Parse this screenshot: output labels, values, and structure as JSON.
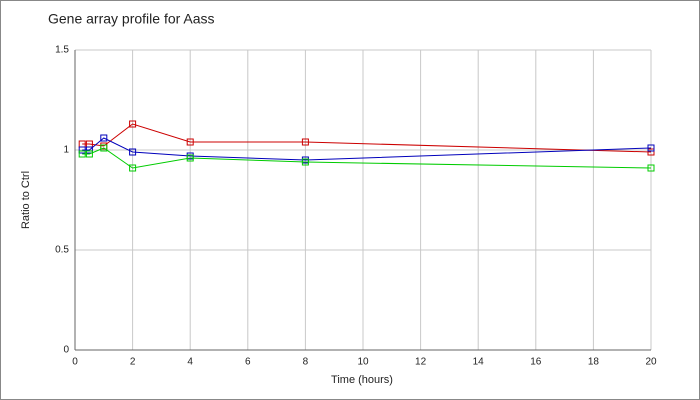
{
  "chart_data": {
    "type": "line",
    "title": "Gene array profile for Aass",
    "x_label": "Time (hours)",
    "y_label": "Ratio to Ctrl",
    "x": [
      0.25,
      0.5,
      1,
      2,
      4,
      8,
      20
    ],
    "series": [
      {
        "color": "#cc0000",
        "values": [
          1.03,
          1.03,
          1.02,
          1.13,
          1.04,
          1.04,
          0.99
        ]
      },
      {
        "color": "#0000bb",
        "values": [
          1.0,
          1.0,
          1.06,
          0.99,
          0.97,
          0.95,
          1.01
        ]
      },
      {
        "color": "#00cc00",
        "values": [
          0.98,
          0.98,
          1.01,
          0.91,
          0.96,
          0.94,
          0.91
        ]
      }
    ],
    "xlim": [
      0,
      20
    ],
    "xticks": [
      0,
      2,
      4,
      6,
      8,
      10,
      12,
      14,
      16,
      18,
      20
    ],
    "ylim": [
      0,
      1.5
    ],
    "yticks": [
      0,
      0.5,
      1,
      1.5
    ],
    "grid": true
  }
}
